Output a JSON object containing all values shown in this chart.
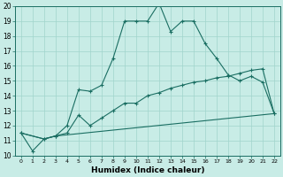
{
  "title": "",
  "xlabel": "Humidex (Indice chaleur)",
  "ylabel": "",
  "xlim": [
    -0.5,
    22.5
  ],
  "ylim": [
    10,
    20
  ],
  "yticks": [
    10,
    11,
    12,
    13,
    14,
    15,
    16,
    17,
    18,
    19,
    20
  ],
  "xticks": [
    0,
    1,
    2,
    3,
    4,
    5,
    6,
    7,
    8,
    9,
    10,
    11,
    12,
    13,
    14,
    15,
    16,
    17,
    18,
    19,
    20,
    21,
    22
  ],
  "bg_color": "#c8ece6",
  "grid_color": "#a0d4cc",
  "line_color": "#1a6e62",
  "line1_x": [
    0,
    1,
    2,
    3,
    4,
    5,
    6,
    7,
    8,
    9,
    10,
    11,
    12,
    13,
    14,
    15,
    16,
    17,
    18,
    19,
    20,
    21,
    22
  ],
  "line1_y": [
    11.5,
    10.3,
    11.1,
    11.3,
    12.0,
    14.4,
    14.3,
    14.7,
    16.5,
    19.0,
    19.0,
    19.0,
    20.2,
    18.3,
    19.0,
    19.0,
    17.5,
    16.5,
    15.4,
    15.0,
    15.3,
    14.9,
    12.8
  ],
  "line2_x": [
    0,
    2,
    3,
    4,
    5,
    6,
    7,
    8,
    9,
    10,
    11,
    12,
    13,
    14,
    15,
    16,
    17,
    18,
    19,
    20,
    21,
    22
  ],
  "line2_y": [
    11.5,
    11.1,
    11.3,
    11.5,
    12.7,
    12.0,
    12.5,
    13.0,
    13.5,
    13.5,
    14.0,
    14.2,
    14.5,
    14.7,
    14.9,
    15.0,
    15.2,
    15.3,
    15.5,
    15.7,
    15.8,
    12.8
  ],
  "line3_x": [
    0,
    2,
    3,
    22
  ],
  "line3_y": [
    11.5,
    11.1,
    11.3,
    12.8
  ]
}
